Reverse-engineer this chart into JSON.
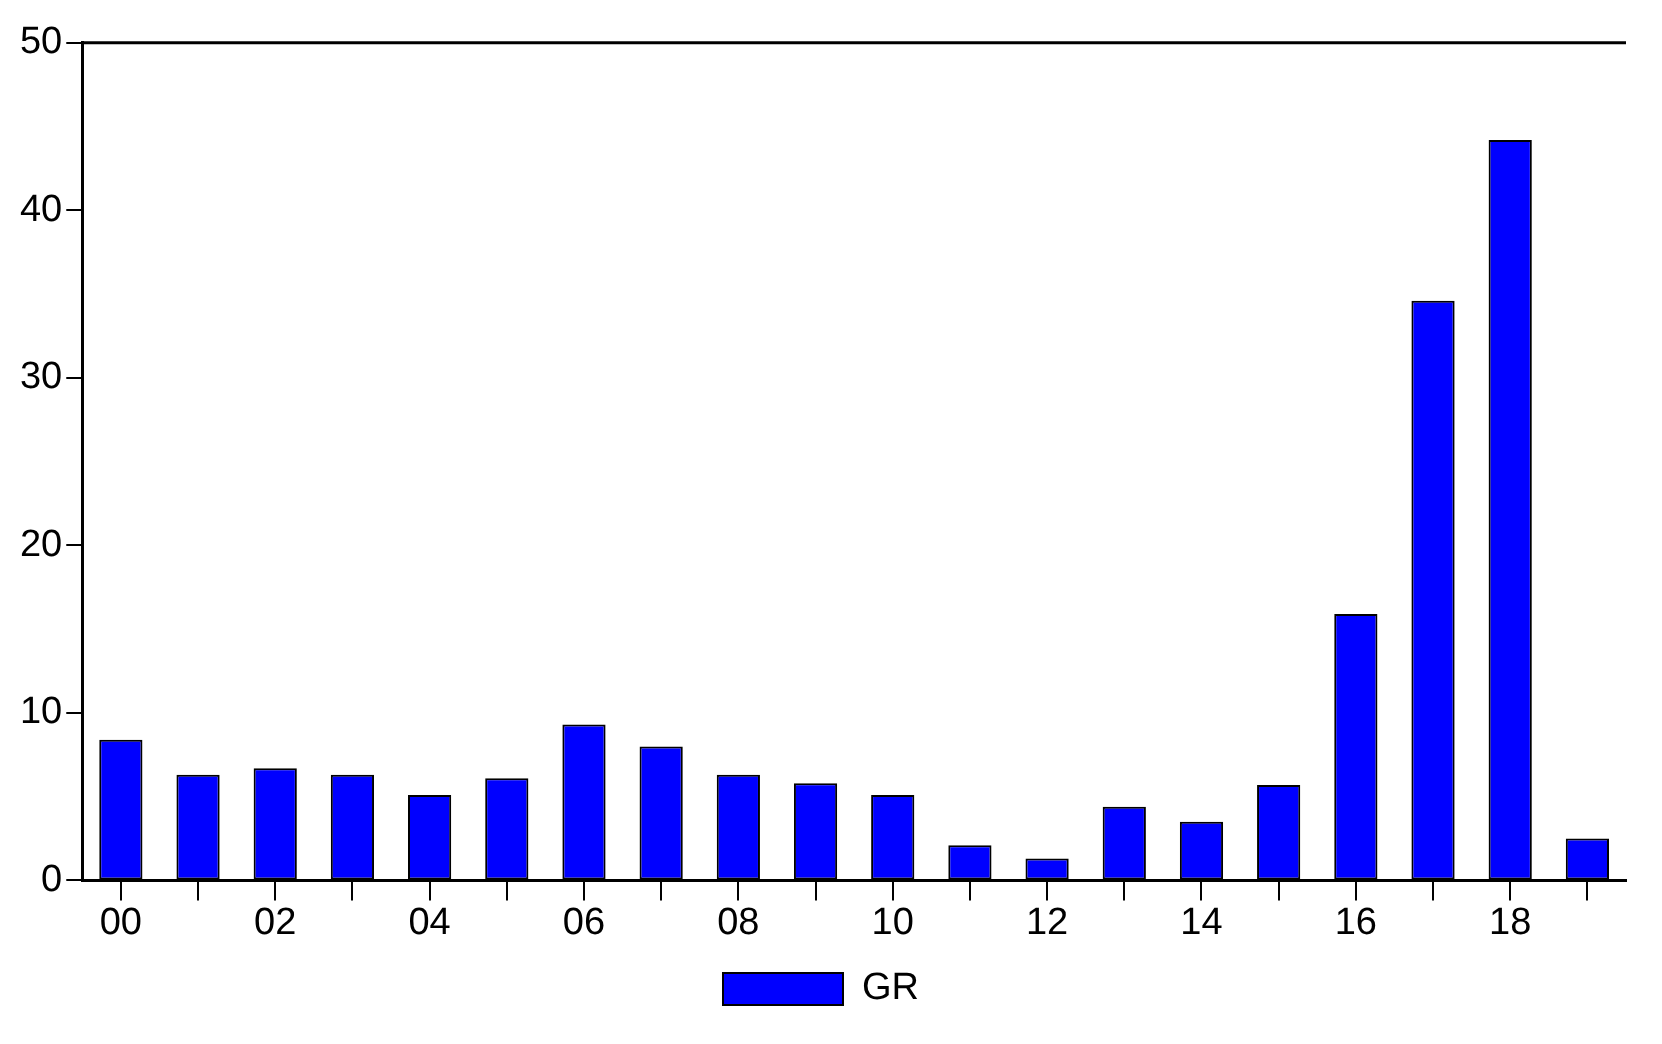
{
  "chart_data": {
    "type": "bar",
    "categories": [
      "00",
      null,
      "02",
      null,
      "04",
      null,
      "06",
      null,
      "08",
      null,
      "10",
      null,
      "12",
      null,
      "14",
      null,
      "16",
      null,
      "18",
      null
    ],
    "series": [
      {
        "name": "GR",
        "color": "#0000ff",
        "values": [
          8.4,
          6.3,
          6.7,
          6.3,
          5.1,
          6.1,
          9.3,
          8.0,
          6.3,
          5.8,
          5.1,
          2.1,
          1.3,
          4.4,
          3.5,
          5.7,
          15.9,
          34.6,
          44.2,
          2.5
        ]
      }
    ],
    "ylim": [
      0,
      50
    ],
    "yticks": [
      0,
      10,
      20,
      30,
      40,
      50
    ],
    "grid": false,
    "legend": "bottom"
  }
}
